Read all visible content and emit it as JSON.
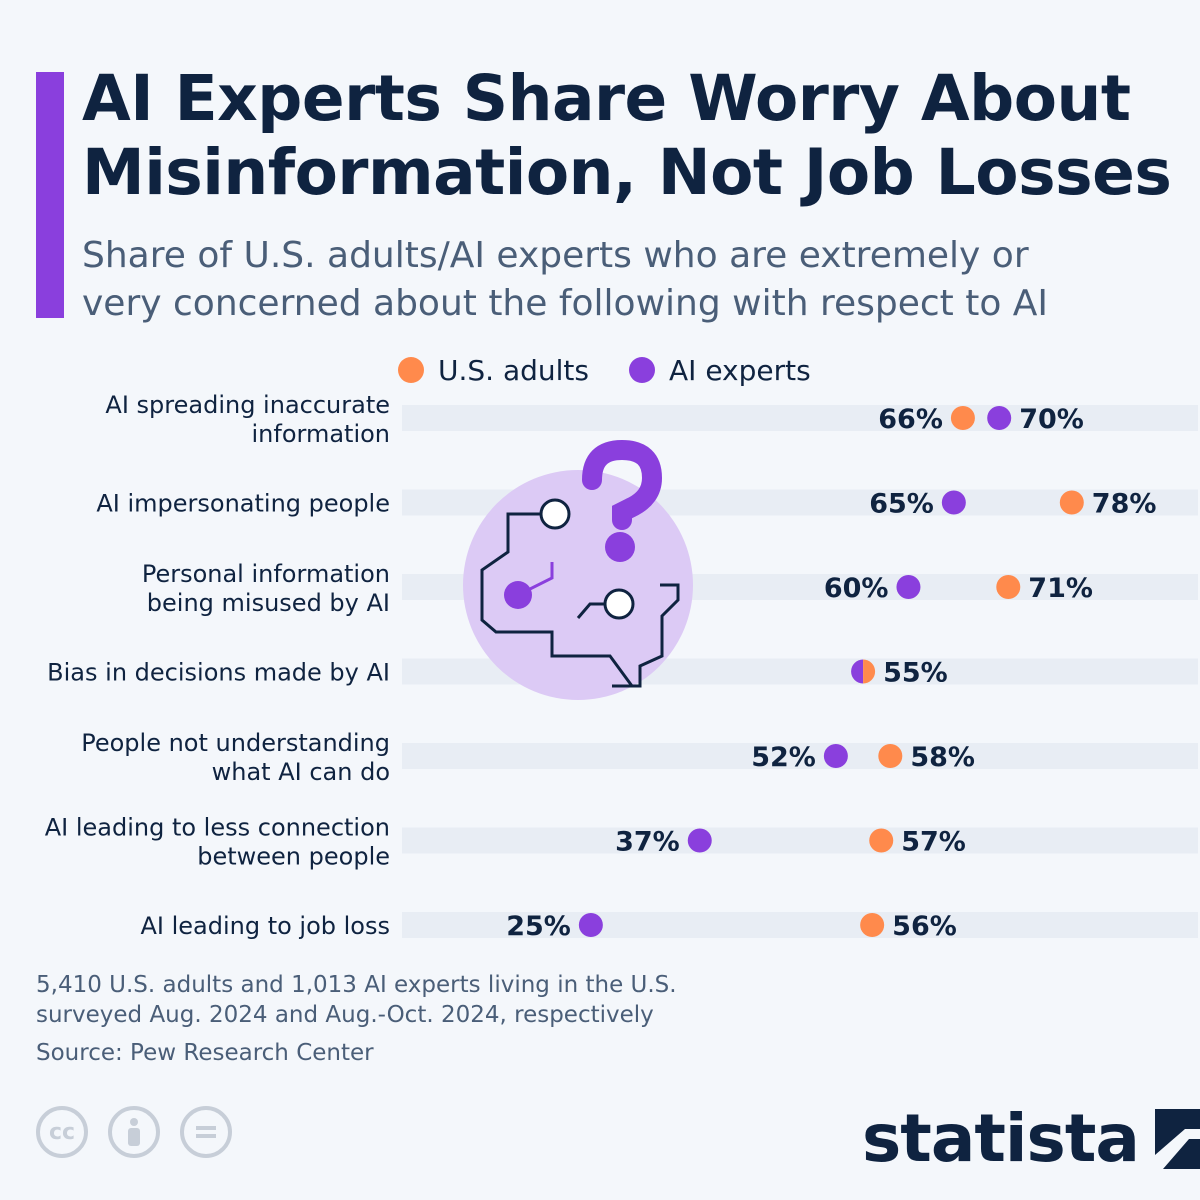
{
  "header": {
    "title": "AI Experts Share Worry About\nMisinformation, Not Job Losses",
    "subtitle": "Share of U.S. adults/AI experts who are extremely or\nvery concerned about the following with respect to AI"
  },
  "colors": {
    "accent": "#8a3fdd",
    "us_adults": "#ff8a4c",
    "ai_experts": "#8a3fdd",
    "row_band": "#e8edf4",
    "text_dark": "#0f2340"
  },
  "chart_data": {
    "type": "dot",
    "title": "AI Experts Share Worry About Misinformation, Not Job Losses",
    "subtitle": "Share of U.S. adults/AI experts who are extremely or very concerned about the following with respect to AI",
    "unit": "%",
    "legend_position": "top",
    "grid": false,
    "xlim": [
      0,
      100
    ],
    "categories": [
      "AI spreading inaccurate\ninformation",
      "AI impersonating people",
      "Personal information\nbeing misused by AI",
      "Bias in decisions made by AI",
      "People not understanding\nwhat AI can do",
      "AI leading to less connection\nbetween people",
      "AI leading to job loss"
    ],
    "series": [
      {
        "name": "U.S. adults",
        "values": [
          66,
          78,
          71,
          55,
          58,
          57,
          56
        ]
      },
      {
        "name": "AI experts",
        "values": [
          70,
          65,
          60,
          55,
          52,
          37,
          25
        ]
      }
    ]
  },
  "footnote": "5,410 U.S. adults and 1,013 AI experts living in the U.S.\nsurveyed Aug. 2024 and Aug.-Oct. 2024, respectively",
  "source": "Source: Pew Research Center",
  "license_icons": [
    "cc",
    "by",
    "nd"
  ],
  "brand": {
    "name": "statista",
    "icon": "statista-logo-icon"
  },
  "illustration": {
    "icon": "question-circuit-icon"
  }
}
